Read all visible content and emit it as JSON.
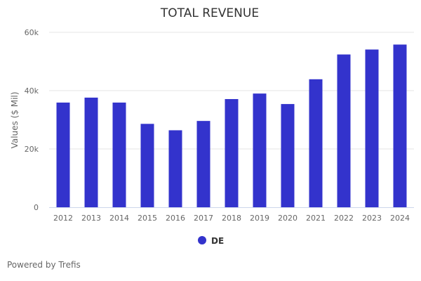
{
  "chart_data": {
    "type": "bar",
    "title": "TOTAL REVENUE",
    "xlabel": "",
    "ylabel": "Values ($ Mil)",
    "categories": [
      "2012",
      "2013",
      "2014",
      "2015",
      "2016",
      "2017",
      "2018",
      "2019",
      "2020",
      "2021",
      "2022",
      "2023",
      "2024"
    ],
    "series": [
      {
        "name": "DE",
        "color": "#3333cc",
        "values": [
          35900,
          37600,
          35900,
          28600,
          26400,
          29600,
          37100,
          39000,
          35400,
          43900,
          52400,
          54100,
          55800
        ]
      }
    ],
    "ylim": [
      0,
      60000
    ],
    "yticks": [
      0,
      20000,
      40000,
      60000
    ],
    "ytick_labels": [
      "0",
      "20k",
      "40k",
      "60k"
    ],
    "grid": true,
    "legend_position": "bottom-center"
  },
  "credit": "Powered by Trefis"
}
